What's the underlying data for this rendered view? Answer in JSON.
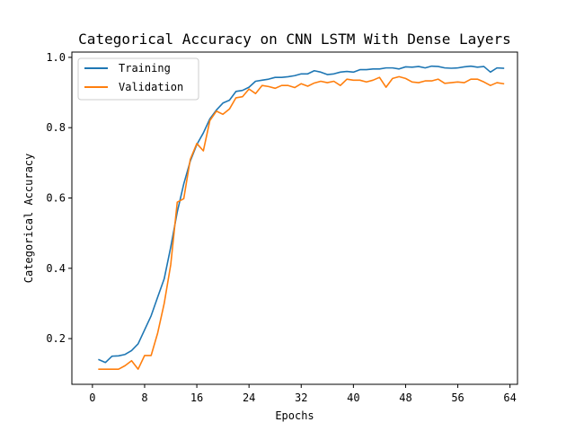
{
  "chart_data": {
    "type": "line",
    "title": "Categorical Accuracy on CNN LSTM With Dense Layers",
    "xlabel": "Epochs",
    "ylabel": "Categorical Accuracy",
    "xlim": [
      -3.15,
      65.15
    ],
    "ylim": [
      0.07,
      1.015
    ],
    "xticks": [
      0,
      8,
      16,
      24,
      32,
      40,
      48,
      56,
      64
    ],
    "xtick_labels": [
      "0",
      "8",
      "16",
      "24",
      "32",
      "40",
      "48",
      "56",
      "64"
    ],
    "yticks": [
      0.2,
      0.4,
      0.6,
      0.8,
      1.0
    ],
    "ytick_labels": [
      "0.2",
      "0.4",
      "0.6",
      "0.8",
      "1.0"
    ],
    "grid": false,
    "legend_position": "upper-left",
    "x": [
      1,
      2,
      3,
      4,
      5,
      6,
      7,
      8,
      9,
      10,
      11,
      12,
      13,
      14,
      15,
      16,
      17,
      18,
      19,
      20,
      21,
      22,
      23,
      24,
      25,
      26,
      27,
      28,
      29,
      30,
      31,
      32,
      33,
      34,
      35,
      36,
      37,
      38,
      39,
      40,
      41,
      42,
      43,
      44,
      45,
      46,
      47,
      48,
      49,
      50,
      51,
      52,
      53,
      54,
      55,
      56,
      57,
      58,
      59,
      60,
      61,
      62,
      63
    ],
    "series": [
      {
        "name": "Training",
        "color": "#1f77b4",
        "values": [
          0.14,
          0.132,
          0.15,
          0.151,
          0.155,
          0.166,
          0.185,
          0.225,
          0.265,
          0.318,
          0.37,
          0.46,
          0.56,
          0.64,
          0.705,
          0.752,
          0.785,
          0.825,
          0.85,
          0.87,
          0.878,
          0.903,
          0.906,
          0.915,
          0.932,
          0.935,
          0.938,
          0.943,
          0.943,
          0.945,
          0.948,
          0.953,
          0.953,
          0.962,
          0.958,
          0.951,
          0.953,
          0.958,
          0.96,
          0.958,
          0.965,
          0.965,
          0.967,
          0.967,
          0.97,
          0.97,
          0.967,
          0.973,
          0.972,
          0.974,
          0.97,
          0.975,
          0.974,
          0.97,
          0.969,
          0.97,
          0.973,
          0.975,
          0.972,
          0.974,
          0.958,
          0.97,
          0.969
        ]
      },
      {
        "name": "Validation",
        "color": "#ff7f0e",
        "values": [
          0.113,
          0.113,
          0.113,
          0.113,
          0.123,
          0.137,
          0.113,
          0.152,
          0.152,
          0.216,
          0.3,
          0.41,
          0.588,
          0.598,
          0.71,
          0.755,
          0.734,
          0.82,
          0.847,
          0.838,
          0.853,
          0.885,
          0.888,
          0.91,
          0.897,
          0.92,
          0.917,
          0.912,
          0.92,
          0.92,
          0.914,
          0.925,
          0.918,
          0.927,
          0.932,
          0.928,
          0.932,
          0.92,
          0.938,
          0.935,
          0.935,
          0.93,
          0.935,
          0.943,
          0.915,
          0.94,
          0.945,
          0.94,
          0.93,
          0.928,
          0.933,
          0.933,
          0.938,
          0.926,
          0.928,
          0.93,
          0.928,
          0.938,
          0.938,
          0.93,
          0.92,
          0.928,
          0.925
        ]
      }
    ]
  }
}
